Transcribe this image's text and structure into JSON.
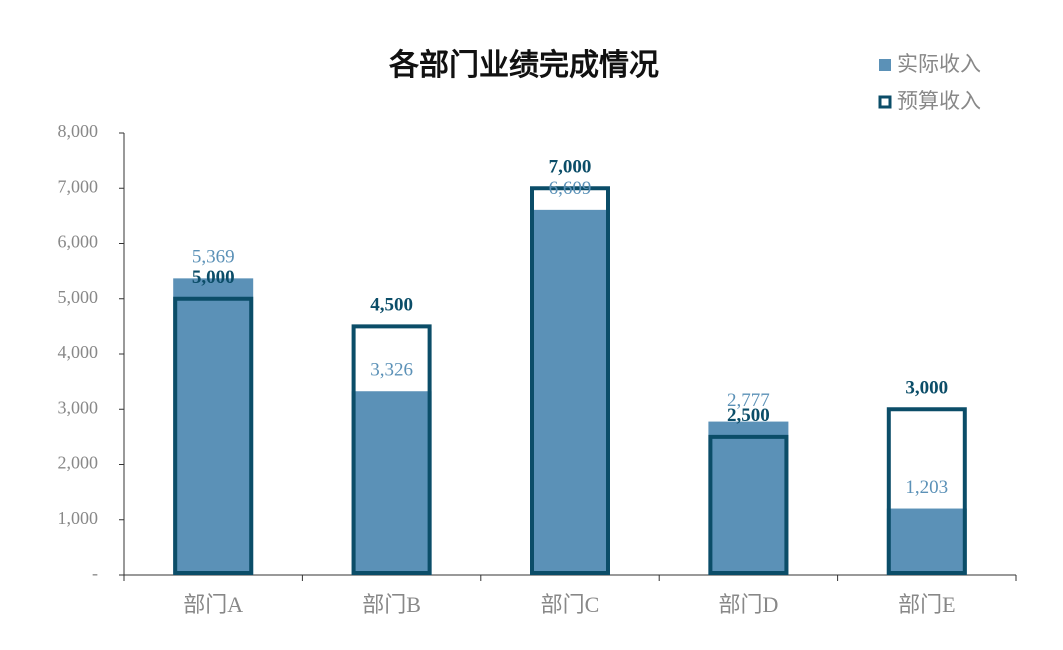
{
  "chart_data": {
    "type": "bar",
    "title": "各部门业绩完成情况",
    "categories": [
      "部门A",
      "部门B",
      "部门C",
      "部门D",
      "部门E"
    ],
    "series": [
      {
        "name": "实际收入",
        "color": "#5b91b7",
        "values": [
          5369,
          3326,
          6609,
          2777,
          1203
        ],
        "value_labels": [
          "5,369",
          "3,326",
          "6,609",
          "2,777",
          "1,203"
        ]
      },
      {
        "name": "预算收入",
        "color": "#0b4d68",
        "values": [
          5000,
          4500,
          7000,
          2500,
          3000
        ],
        "value_labels": [
          "5,000",
          "4,500",
          "7,000",
          "2,500",
          "3,000"
        ]
      }
    ],
    "ylim": [
      0,
      8000
    ],
    "yticks": [
      {
        "value": 0,
        "label": "-"
      },
      {
        "value": 1000,
        "label": "1,000"
      },
      {
        "value": 2000,
        "label": "2,000"
      },
      {
        "value": 3000,
        "label": "3,000"
      },
      {
        "value": 4000,
        "label": "4,000"
      },
      {
        "value": 5000,
        "label": "5,000"
      },
      {
        "value": 6000,
        "label": "6,000"
      },
      {
        "value": 7000,
        "label": "7,000"
      },
      {
        "value": 8000,
        "label": "8,000"
      }
    ],
    "legend": "top-right"
  }
}
